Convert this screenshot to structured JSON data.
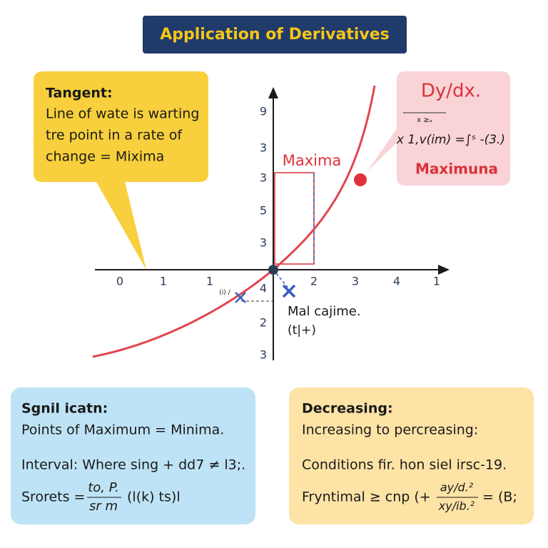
{
  "header": {
    "title": "Application of Derivatives"
  },
  "tangent_box": {
    "heading": "Tangent:",
    "lines": [
      "Line of wate is warting",
      "tre point in a rate of",
      "change = Mixima"
    ]
  },
  "derivative_box": {
    "title": "Dy/dx.",
    "small": "x ≥ₐ",
    "formula": "x 1,v(im) =∫ˢ -(3.)",
    "label": "Maximuna"
  },
  "graph": {
    "y_labels": [
      "9",
      "3",
      "3",
      "5",
      "3"
    ],
    "x_labels": [
      "0",
      "1",
      "1",
      "2",
      "3",
      "4",
      "1"
    ],
    "lower_labels": [
      "4",
      "2",
      "3"
    ],
    "maxima_label": "Maxima",
    "point_label": "Mal cajime.",
    "point_sublabel": "(t|+)",
    "left_note": "(i) /"
  },
  "left_card": {
    "heading": "Sgnil icatn:",
    "lines": [
      "Points of Maximum = Minima.",
      "Interval: Where sing + dd7 ≠ l3;."
    ],
    "formula_lead": "Srorets =",
    "formula_num": "to, P.",
    "formula_den": "sr m",
    "formula_tail": "(l(k) ts)l"
  },
  "right_card": {
    "heading": "Decreasing:",
    "lines": [
      "Increasing to percreasing:",
      "Conditions fir. hon siel irsc-19."
    ],
    "formula_lead": "Fryntimal ≥ cnp (+",
    "formula_num": "ay/d.²",
    "formula_den": "xy/ib.²",
    "formula_tail": "= (B;"
  }
}
